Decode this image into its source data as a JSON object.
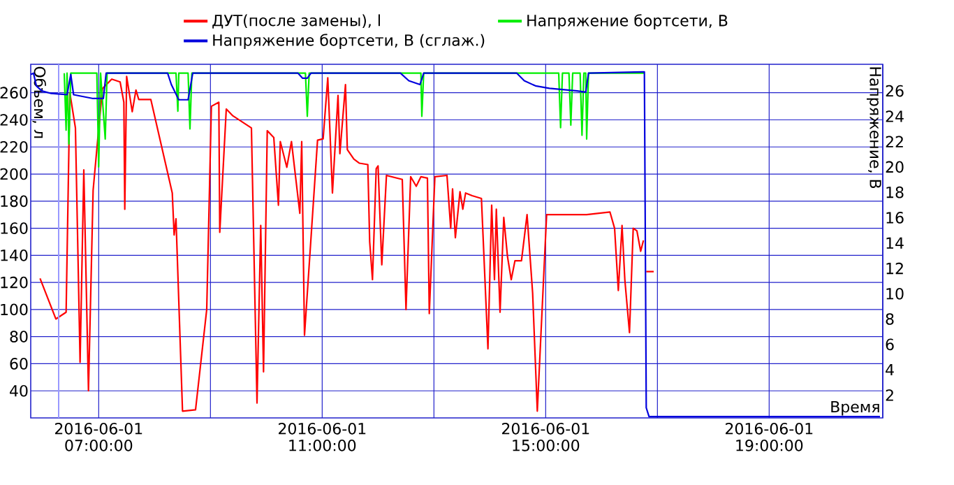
{
  "chart_data": {
    "type": "line",
    "xlabel": "Время",
    "ylabel": "Объем, л",
    "y2label": "Напряжение, В",
    "xlim": [
      "2016-06-01T05:47",
      "2016-06-01T21:02"
    ],
    "xticks": [
      {
        "value": "2016-06-01T07:00",
        "label": "2016-06-01 07:00:00"
      },
      {
        "value": "2016-06-01T09:00",
        "label": null
      },
      {
        "value": "2016-06-01T11:00",
        "label": "2016-06-01 11:00:00"
      },
      {
        "value": "2016-06-01T13:00",
        "label": null
      },
      {
        "value": "2016-06-01T15:00",
        "label": "2016-06-01 15:00:00"
      },
      {
        "value": "2016-06-01T17:00",
        "label": null
      },
      {
        "value": "2016-06-01T19:00",
        "label": "2016-06-01 19:00:00"
      }
    ],
    "ylim": [
      20,
      281
    ],
    "yticks": [
      40,
      60,
      80,
      100,
      120,
      140,
      160,
      180,
      200,
      220,
      240,
      260
    ],
    "y2lim": [
      0.2,
      28.1
    ],
    "y2ticks": [
      2,
      4,
      6,
      8,
      10,
      12,
      14,
      16,
      18,
      20,
      22,
      24,
      26
    ],
    "grid": true,
    "legend": "top",
    "ref_lines": [
      {
        "axis": "x",
        "value": "2016-06-01T06:17",
        "color": "#9999ff"
      }
    ],
    "series": [
      {
        "name": "ДУТ(после замены), l",
        "color": "#ff0000",
        "x": [
          "2016-06-01T05:57",
          "2016-06-01T06:14",
          "2016-06-01T06:25",
          "2016-06-01T06:29",
          "2016-06-01T06:35",
          "2016-06-01T06:40",
          "2016-06-01T06:44",
          "2016-06-01T06:49",
          "2016-06-01T06:54",
          "2016-06-01T06:59",
          "2016-06-01T07:04",
          "2016-06-01T07:14",
          "2016-06-01T07:23",
          "2016-06-01T07:27",
          "2016-06-01T07:28",
          "2016-06-01T07:30",
          "2016-06-01T07:36",
          "2016-06-01T07:40",
          "2016-06-01T07:43",
          "2016-06-01T07:56",
          "2016-06-01T08:19",
          "2016-06-01T08:21",
          "2016-06-01T08:23",
          "2016-06-01T08:30",
          "2016-06-01T08:44",
          "2016-06-01T08:56",
          "2016-06-01T09:01",
          "2016-06-01T09:09",
          "2016-06-01T09:10",
          "2016-06-01T09:17",
          "2016-06-01T09:24",
          "2016-06-01T09:44",
          "2016-06-01T09:50",
          "2016-06-01T09:54",
          "2016-06-01T09:57",
          "2016-06-01T10:01",
          "2016-06-01T10:08",
          "2016-06-01T10:13",
          "2016-06-01T10:15",
          "2016-06-01T10:22",
          "2016-06-01T10:27",
          "2016-06-01T10:36",
          "2016-06-01T10:38",
          "2016-06-01T10:41",
          "2016-06-01T10:55",
          "2016-06-01T11:01",
          "2016-06-01T11:06",
          "2016-06-01T11:11",
          "2016-06-01T11:14",
          "2016-06-01T11:17",
          "2016-06-01T11:19",
          "2016-06-01T11:25",
          "2016-06-01T11:27",
          "2016-06-01T11:34",
          "2016-06-01T11:40",
          "2016-06-01T11:49",
          "2016-06-01T11:51",
          "2016-06-01T11:54",
          "2016-06-01T11:58",
          "2016-06-01T12:00",
          "2016-06-01T12:04",
          "2016-06-01T12:09",
          "2016-06-01T12:26",
          "2016-06-01T12:30",
          "2016-06-01T12:35",
          "2016-06-01T12:41",
          "2016-06-01T12:46",
          "2016-06-01T12:53",
          "2016-06-01T12:55",
          "2016-06-01T13:01",
          "2016-06-01T13:14",
          "2016-06-01T13:18",
          "2016-06-01T13:20",
          "2016-06-01T13:23",
          "2016-06-01T13:28",
          "2016-06-01T13:31",
          "2016-06-01T13:34",
          "2016-06-01T13:41",
          "2016-06-01T13:51",
          "2016-06-01T13:58",
          "2016-06-01T14:02",
          "2016-06-01T14:05",
          "2016-06-01T14:07",
          "2016-06-01T14:11",
          "2016-06-01T14:15",
          "2016-06-01T14:19",
          "2016-06-01T14:23",
          "2016-06-01T14:27",
          "2016-06-01T14:34",
          "2016-06-01T14:40",
          "2016-06-01T14:46",
          "2016-06-01T14:51",
          "2016-06-01T15:01",
          "2016-06-01T15:44",
          "2016-06-01T16:09",
          "2016-06-01T16:14",
          "2016-06-01T16:18",
          "2016-06-01T16:22",
          "2016-06-01T16:25",
          "2016-06-01T16:30",
          "2016-06-01T16:34",
          "2016-06-01T16:38",
          "2016-06-01T16:42",
          "2016-06-01T16:45",
          "2016-06-01T16:46",
          "2016-06-01T16:47",
          "2016-06-01T16:48",
          "2016-06-01T16:56"
        ],
        "values": [
          123,
          93,
          98,
          260,
          234,
          61,
          203,
          40,
          188,
          226,
          263,
          270,
          268,
          253,
          174,
          272,
          246,
          262,
          255,
          255,
          186,
          155,
          167,
          25,
          26,
          100,
          250,
          253,
          157,
          248,
          243,
          234,
          31,
          162,
          54,
          232,
          227,
          177,
          224,
          205,
          224,
          171,
          224,
          81,
          225,
          226,
          271,
          186,
          222,
          258,
          215,
          266,
          218,
          211,
          208,
          207,
          150,
          122,
          204,
          206,
          133,
          199,
          196,
          100,
          198,
          191,
          198,
          197,
          97,
          198,
          199,
          160,
          189,
          153,
          187,
          174,
          186,
          184,
          182,
          71,
          177,
          122,
          174,
          98,
          168,
          139,
          122,
          136,
          136,
          170,
          112,
          25,
          170,
          170,
          172,
          160,
          114,
          162,
          122,
          83,
          160,
          158,
          143,
          151,
          null,
          null,
          128,
          128
        ]
      },
      {
        "name": "Напряжение бортсети, В",
        "color": "#00ee00",
        "axis": "y2",
        "x": [
          "2016-06-01T06:23",
          "2016-06-01T06:25",
          "2016-06-01T06:26",
          "2016-06-01T06:28",
          "2016-06-01T06:30",
          "2016-06-01T06:58",
          "2016-06-01T07:00",
          "2016-06-01T07:02",
          "2016-06-01T07:07",
          "2016-06-01T07:09",
          "2016-06-01T08:23",
          "2016-06-01T08:25",
          "2016-06-01T08:26",
          "2016-06-01T08:36",
          "2016-06-01T08:38",
          "2016-06-01T08:40",
          "2016-06-01T10:42",
          "2016-06-01T10:44",
          "2016-06-01T10:46",
          "2016-06-01T12:46",
          "2016-06-01T12:47",
          "2016-06-01T12:49",
          "2016-06-01T15:14",
          "2016-06-01T15:16",
          "2016-06-01T15:18",
          "2016-06-01T15:25",
          "2016-06-01T15:27",
          "2016-06-01T15:29",
          "2016-06-01T15:37",
          "2016-06-01T15:39",
          "2016-06-01T15:41",
          "2016-06-01T15:43",
          "2016-06-01T15:44",
          "2016-06-01T15:46",
          "2016-06-01T16:46"
        ],
        "values": [
          27.4,
          22.9,
          27.4,
          21.8,
          27.4,
          27.4,
          20.0,
          27.4,
          22.2,
          27.4,
          27.4,
          24.4,
          27.4,
          27.4,
          23.0,
          27.4,
          27.4,
          24.0,
          27.4,
          27.4,
          24.0,
          27.4,
          27.4,
          23.1,
          27.4,
          27.4,
          23.3,
          27.4,
          27.4,
          22.5,
          27.4,
          27.4,
          22.2,
          27.4,
          27.4
        ]
      },
      {
        "name": "Напряжение бортсети, В (сглаж.)",
        "color": "#0000dd",
        "axis": "y2",
        "x": [
          "2016-06-01T05:47",
          "2016-06-01T05:50",
          "2016-06-01T05:53",
          "2016-06-01T05:59",
          "2016-06-01T06:09",
          "2016-06-01T06:26",
          "2016-06-01T06:30",
          "2016-06-01T06:33",
          "2016-06-01T06:54",
          "2016-06-01T07:05",
          "2016-06-01T07:08",
          "2016-06-01T08:14",
          "2016-06-01T08:18",
          "2016-06-01T08:26",
          "2016-06-01T08:36",
          "2016-06-01T08:41",
          "2016-06-01T10:34",
          "2016-06-01T10:39",
          "2016-06-01T10:44",
          "2016-06-01T10:48",
          "2016-06-01T12:24",
          "2016-06-01T12:33",
          "2016-06-01T12:45",
          "2016-06-01T12:49",
          "2016-06-01T14:29",
          "2016-06-01T14:37",
          "2016-06-01T14:49",
          "2016-06-01T15:04",
          "2016-06-01T15:34",
          "2016-06-01T15:43",
          "2016-06-01T15:46",
          "2016-06-01T16:44",
          "2016-06-01T16:46",
          "2016-06-01T16:48",
          "2016-06-01T16:51",
          "2016-06-01T20:59"
        ],
        "values": [
          27.3,
          27.4,
          26.4,
          26.0,
          25.8,
          25.7,
          27.3,
          25.7,
          25.4,
          25.4,
          27.4,
          27.4,
          26.5,
          25.3,
          25.3,
          27.4,
          27.4,
          27.0,
          27.0,
          27.4,
          27.4,
          26.8,
          26.5,
          27.4,
          27.4,
          26.8,
          26.4,
          26.2,
          26.0,
          25.9,
          27.4,
          27.5,
          27.5,
          1.0,
          0.3,
          0.3
        ]
      }
    ]
  }
}
